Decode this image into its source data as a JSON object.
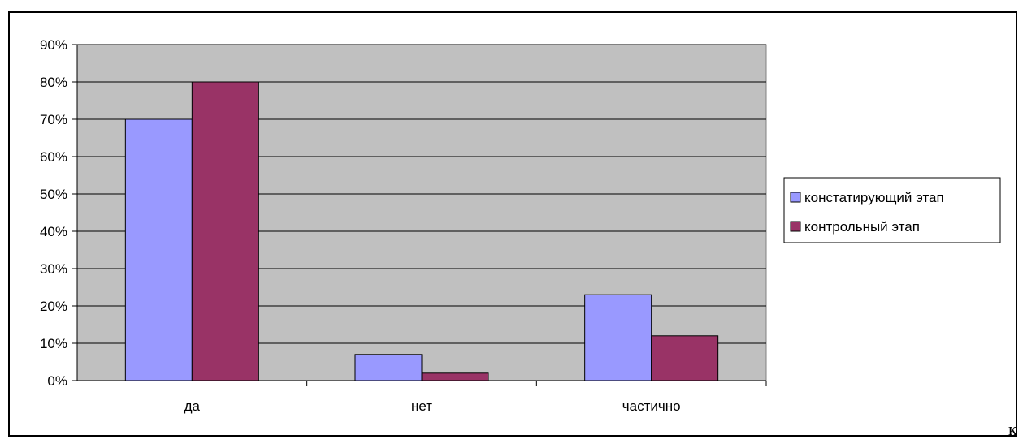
{
  "chart_data": {
    "type": "bar",
    "categories": [
      "да",
      "нет",
      "частично"
    ],
    "series": [
      {
        "name": "констатирующий этап",
        "color": "#9999ff",
        "values": [
          70,
          7,
          23
        ]
      },
      {
        "name": "контрольный этап",
        "color": "#993366",
        "values": [
          80,
          2,
          12
        ]
      }
    ],
    "ylim": [
      0,
      90
    ],
    "yticks": [
      "0%",
      "10%",
      "20%",
      "30%",
      "40%",
      "50%",
      "60%",
      "70%",
      "80%",
      "90%"
    ],
    "grid": true,
    "plot_background": "#c0c0c0",
    "legend_position": "right"
  },
  "trailing_text": "к"
}
